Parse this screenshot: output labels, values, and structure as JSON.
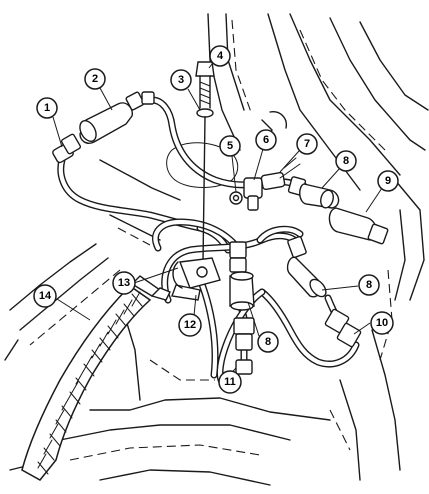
{
  "callouts": [
    {
      "id": "c1",
      "label": "1"
    },
    {
      "id": "c2",
      "label": "2"
    },
    {
      "id": "c3",
      "label": "3"
    },
    {
      "id": "c4",
      "label": "4"
    },
    {
      "id": "c5",
      "label": "5"
    },
    {
      "id": "c6",
      "label": "6"
    },
    {
      "id": "c7",
      "label": "7"
    },
    {
      "id": "c8a",
      "label": "8"
    },
    {
      "id": "c9",
      "label": "9"
    },
    {
      "id": "c8b",
      "label": "8"
    },
    {
      "id": "c10",
      "label": "10"
    },
    {
      "id": "c8c",
      "label": "8"
    },
    {
      "id": "c11",
      "label": "11"
    },
    {
      "id": "c12",
      "label": "12"
    },
    {
      "id": "c13",
      "label": "13"
    },
    {
      "id": "c14",
      "label": "14"
    }
  ]
}
